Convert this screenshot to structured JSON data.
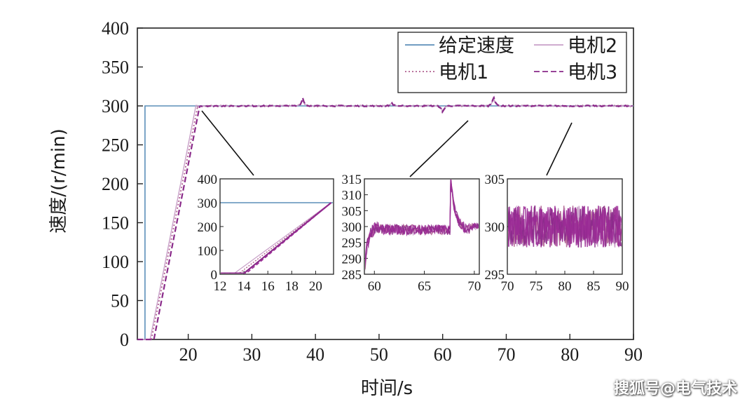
{
  "chart_data": {
    "type": "line",
    "xlabel": "时间/s",
    "ylabel": "速度/(r/min)",
    "xlim": [
      12,
      90
    ],
    "ylim": [
      0,
      400
    ],
    "xticks": [
      "20",
      "30",
      "40",
      "50",
      "60",
      "70",
      "80",
      "90"
    ],
    "yticks": [
      "0",
      "50",
      "100",
      "150",
      "200",
      "250",
      "300",
      "350",
      "400"
    ],
    "legend_position": "top-right",
    "colors": {
      "reference": "#5b8fb9",
      "motor1": "#b06090",
      "motor2": "#c8a0c8",
      "motor3": "#8a2a8a",
      "main": "#9b2b96"
    },
    "series": [
      {
        "name": "给定速度",
        "style": "solid",
        "x": [
          12,
          13.2,
          13.2,
          90
        ],
        "y": [
          0,
          0,
          300,
          300
        ]
      },
      {
        "name": "电机1",
        "style": "dotted",
        "x": [
          12,
          14.2,
          21.5,
          90
        ],
        "y": [
          0,
          0,
          300,
          300
        ]
      },
      {
        "name": "电机2",
        "style": "solid-thin",
        "x": [
          12,
          14.0,
          21.2,
          90
        ],
        "y": [
          0,
          0,
          300,
          300
        ]
      },
      {
        "name": "电机3",
        "style": "dashed",
        "x": [
          12,
          14.6,
          21.8,
          90
        ],
        "y": [
          0,
          0,
          300,
          300
        ]
      }
    ],
    "disturbances": [
      {
        "x": 38,
        "peak": 308
      },
      {
        "x": 52,
        "peak": 303
      },
      {
        "x": 60,
        "dip": 293
      },
      {
        "x": 68,
        "peak": 310
      }
    ],
    "insets": [
      {
        "xlim": [
          12,
          21.5
        ],
        "ylim": [
          0,
          400
        ],
        "xticks": [
          "12",
          "14",
          "16",
          "18",
          "20"
        ],
        "yticks": [
          "0",
          "100",
          "200",
          "300",
          "400"
        ]
      },
      {
        "xlim": [
          59,
          70.5
        ],
        "ylim": [
          285,
          315
        ],
        "xticks": [
          "60",
          "65",
          "70"
        ],
        "yticks": [
          "285",
          "290",
          "295",
          "300",
          "305",
          "310",
          "315"
        ]
      },
      {
        "xlim": [
          70,
          90
        ],
        "ylim": [
          295,
          305
        ],
        "xticks": [
          "70",
          "75",
          "80",
          "85",
          "90"
        ],
        "yticks": [
          "295",
          "300",
          "305"
        ]
      }
    ]
  },
  "watermark": "搜狐号@电气技术"
}
